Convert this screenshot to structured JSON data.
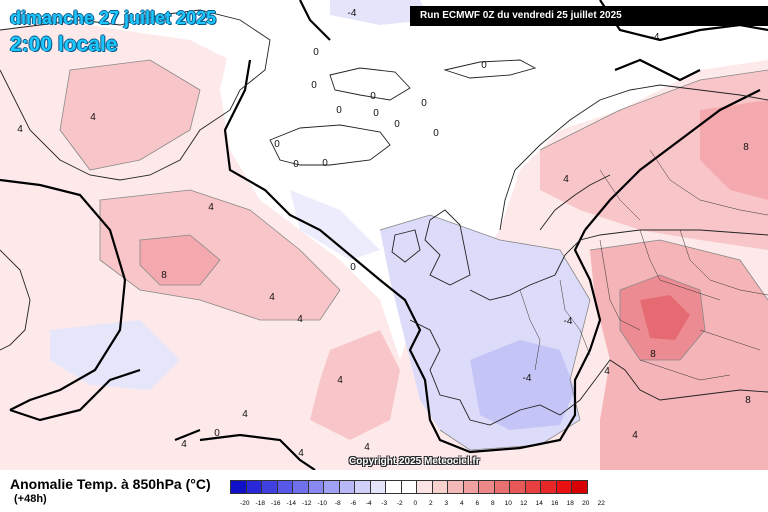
{
  "header": {
    "date": "dimanche 27 juillet 2025",
    "local_time": "2:00 locale",
    "run_info": "Run ECMWF 0Z du vendredi 25 juillet 2025"
  },
  "copyright": "Copyright 2025 Meteociel.fr",
  "parameter": {
    "label": "Anomalie Temp. à 850hPa (°C)",
    "step": "(+48h)"
  },
  "legend": {
    "ticks": [
      "-20",
      "-18",
      "-16",
      "-14",
      "-12",
      "-10",
      "-8",
      "-6",
      "-4",
      "-3",
      "-2",
      "0",
      "2",
      "3",
      "4",
      "6",
      "8",
      "10",
      "12",
      "14",
      "16",
      "18",
      "20",
      "22"
    ],
    "colors": [
      "#1010c8",
      "#2828d8",
      "#4040e0",
      "#5858e8",
      "#7070ec",
      "#8888f0",
      "#a0a0f4",
      "#b8b8f6",
      "#d0d0f8",
      "#e4e4fa",
      "#ffffff",
      "#ffffff",
      "#fce4e4",
      "#f8d0d0",
      "#f4b8b8",
      "#f0a0a0",
      "#ec8888",
      "#e87070",
      "#e85858",
      "#e84040",
      "#e82828",
      "#e81010",
      "#d80000"
    ]
  },
  "map": {
    "contour_labels": [
      {
        "text": "0"
      },
      {
        "text": "0"
      },
      {
        "text": "0"
      },
      {
        "text": "0"
      },
      {
        "text": "0"
      },
      {
        "text": "0"
      },
      {
        "text": "0"
      },
      {
        "text": "0"
      },
      {
        "text": "0"
      },
      {
        "text": "0"
      },
      {
        "text": "0"
      },
      {
        "text": "0"
      },
      {
        "text": "0"
      },
      {
        "text": "0"
      },
      {
        "text": "4"
      },
      {
        "text": "4"
      },
      {
        "text": "4"
      },
      {
        "text": "4"
      },
      {
        "text": "4"
      },
      {
        "text": "4"
      },
      {
        "text": "4"
      },
      {
        "text": "4"
      },
      {
        "text": "4"
      },
      {
        "text": "4"
      },
      {
        "text": "4"
      },
      {
        "text": "4"
      },
      {
        "text": "4"
      },
      {
        "text": "-4"
      },
      {
        "text": "-4"
      },
      {
        "text": "-4"
      },
      {
        "text": "-4"
      },
      {
        "text": "8"
      },
      {
        "text": "8"
      },
      {
        "text": "8"
      },
      {
        "text": "8"
      }
    ]
  }
}
